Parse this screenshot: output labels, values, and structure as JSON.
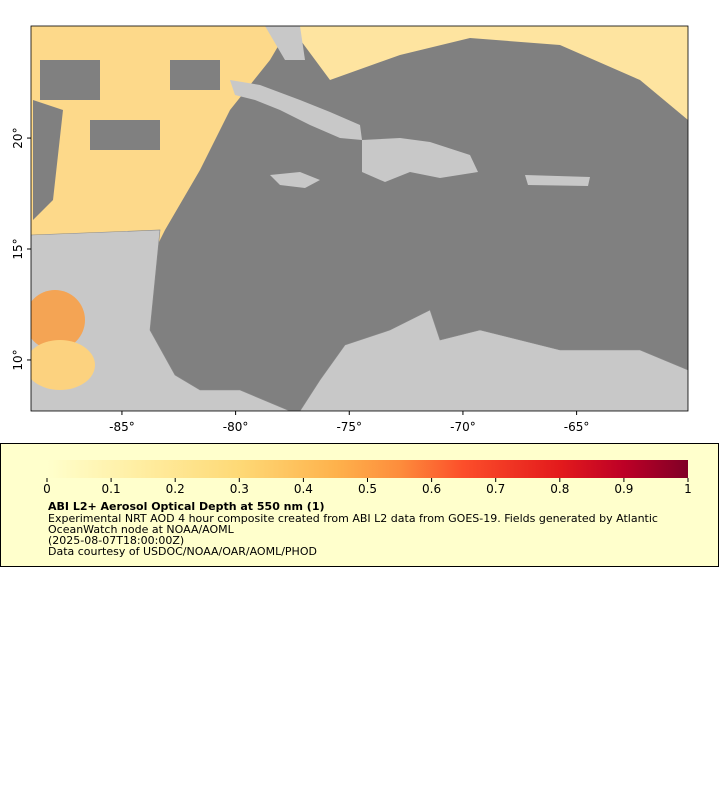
{
  "map": {
    "lonlim": [
      -89,
      -60.1
    ],
    "latlim": [
      7.7,
      25.05
    ],
    "lon_ticks": [
      {
        "value": -85,
        "label": "-85°"
      },
      {
        "value": -80,
        "label": "-80°"
      },
      {
        "value": -75,
        "label": "-75°"
      },
      {
        "value": -70,
        "label": "-70°"
      },
      {
        "value": -65,
        "label": "-65°"
      }
    ],
    "lat_ticks": [
      {
        "value": 10,
        "label": "10°"
      },
      {
        "value": 15,
        "label": "15°"
      },
      {
        "value": 20,
        "label": "20°"
      }
    ]
  },
  "colorbar": {
    "range": [
      0,
      1
    ],
    "ticks": [
      0,
      0.1,
      0.2,
      0.3,
      0.4,
      0.5,
      0.6,
      0.7,
      0.8,
      0.9,
      1
    ]
  },
  "legend": {
    "title": "ABI L2+ Aerosol Optical Depth at 550 nm (1)",
    "lines": [
      "Experimental NRT AOD 4 hour composite created from ABI L2 data from GOES-19. Fields generated by Atlantic",
      "OceanWatch node at NOAA/AOML",
      "(2025-08-07T18:00:00Z)",
      "Data courtesy of USDOC/NOAA/OAR/AOML/PHOD"
    ]
  }
}
